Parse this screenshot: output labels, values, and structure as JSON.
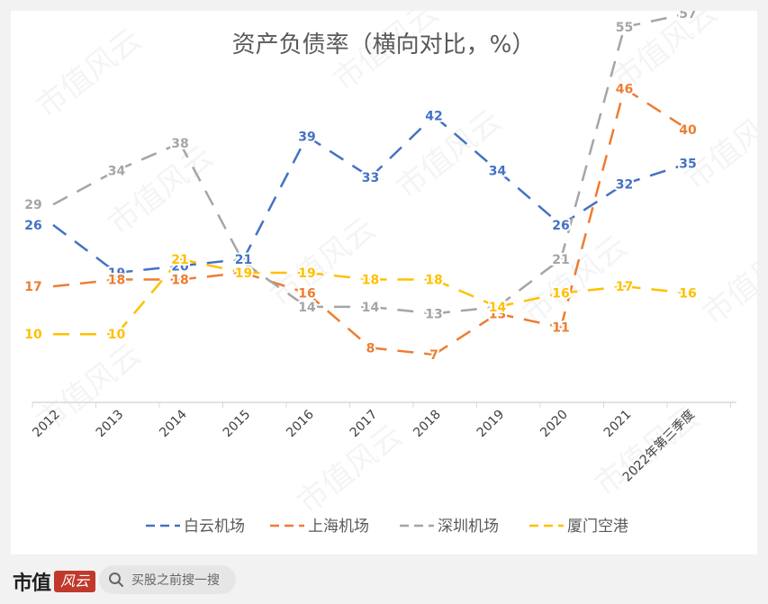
{
  "chart_data": {
    "type": "line",
    "title": "资产负债率（横向对比，%）",
    "categories": [
      "2012",
      "2013",
      "2014",
      "2015",
      "2016",
      "2017",
      "2018",
      "2019",
      "2020",
      "2021",
      "2022年第三季度"
    ],
    "ylim": [
      0,
      65
    ],
    "grid": false,
    "legend_position": "bottom",
    "series": [
      {
        "name": "白云机场",
        "color": "#4472c4",
        "values": [
          26,
          19,
          20,
          21,
          39,
          33,
          42,
          34,
          26,
          32,
          35
        ]
      },
      {
        "name": "上海机场",
        "color": "#ed7d31",
        "values": [
          17,
          18,
          18,
          19,
          16,
          8,
          7,
          13,
          11,
          46,
          40
        ]
      },
      {
        "name": "深圳机场",
        "color": "#a5a5a5",
        "values": [
          29,
          34,
          38,
          null,
          14,
          14,
          13,
          14,
          21,
          55,
          57
        ]
      },
      {
        "name": "厦门空港",
        "color": "#ffc000",
        "values": [
          10,
          10,
          21,
          19,
          19,
          18,
          18,
          14,
          16,
          17,
          16
        ]
      }
    ],
    "label_series_for_category_2015": "深圳机场",
    "watermark": "市值风云"
  },
  "footer": {
    "logo_text": "市值",
    "logo_mark": "风云",
    "search_placeholder": "买股之前搜一搜",
    "search_icon": "search-icon"
  }
}
